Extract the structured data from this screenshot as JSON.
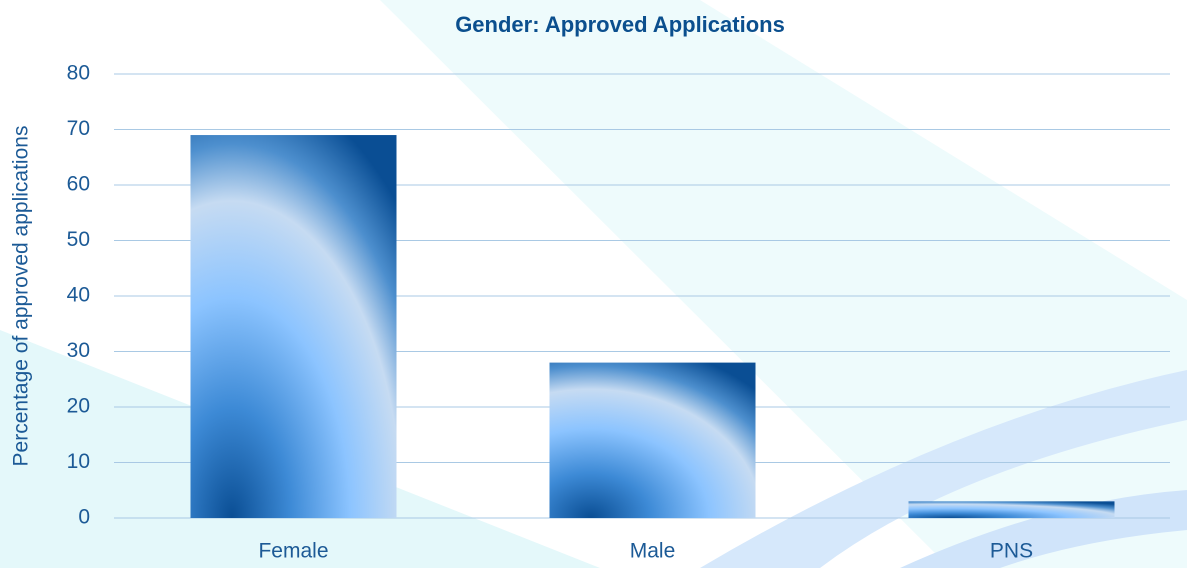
{
  "chart_data": {
    "type": "bar",
    "title": "Gender: Approved Applications",
    "ylabel": "Percentage of approved applications",
    "categories": [
      "Female",
      "Male",
      "PNS"
    ],
    "values": [
      69,
      28,
      3
    ],
    "color": "#1a6fbf",
    "ylim": [
      0,
      80
    ],
    "yticks": [
      0,
      10,
      20,
      30,
      40,
      50,
      60,
      70,
      80
    ],
    "grid": true
  }
}
